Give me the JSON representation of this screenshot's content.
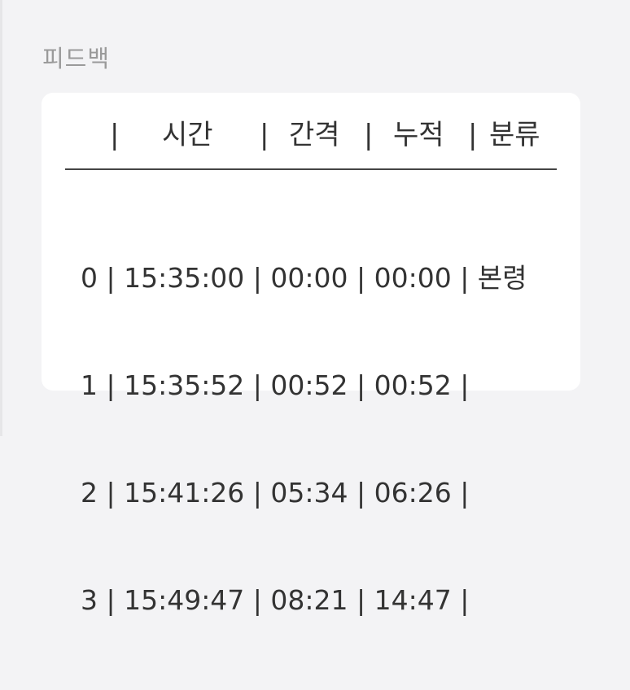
{
  "section": {
    "title": "피드백"
  },
  "table": {
    "sep": "|",
    "headers": [
      "시간",
      "간격",
      "누적",
      "분류"
    ],
    "rows": [
      {
        "text": "0 | 15:35:00 | 00:00 | 00:00 | 본령"
      },
      {
        "text": "1 | 15:35:52 | 00:52 | 00:52 |"
      },
      {
        "text": "2 | 15:41:26 | 05:34 | 06:26 |"
      },
      {
        "text": "3 | 15:49:47 | 08:21 | 14:47 |"
      }
    ]
  }
}
